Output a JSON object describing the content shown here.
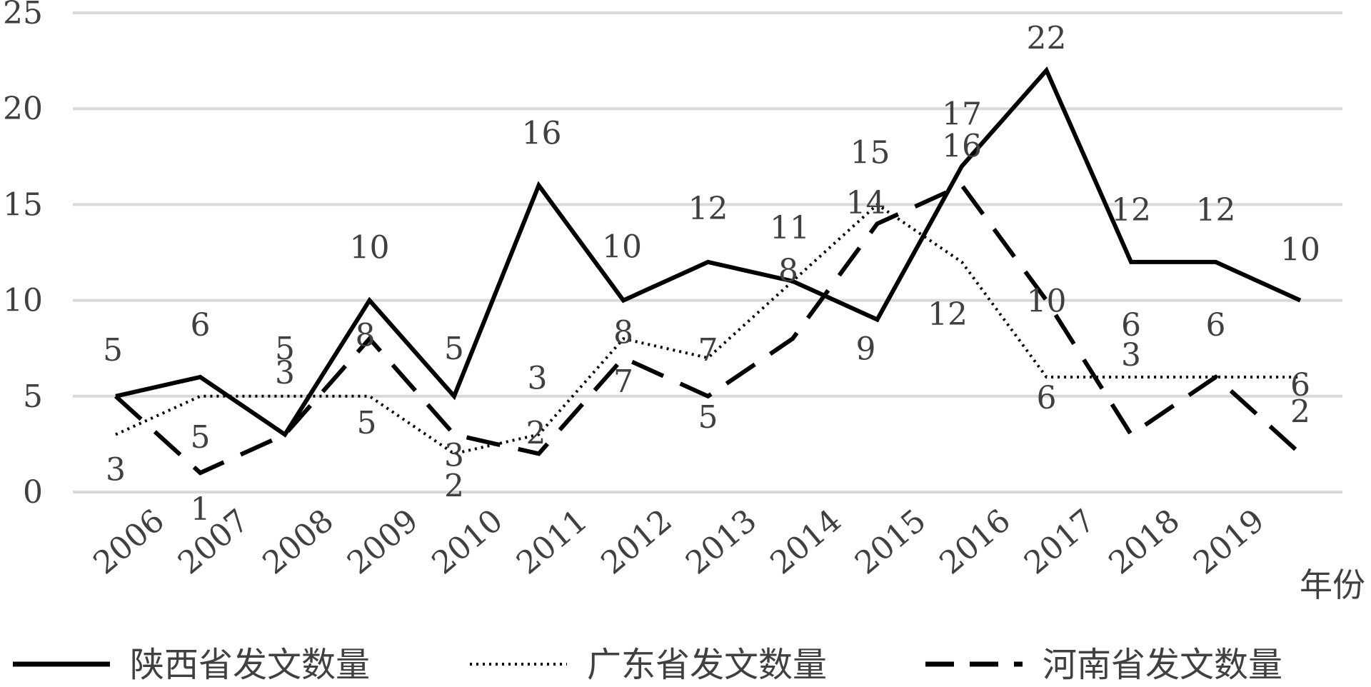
{
  "chart_data": {
    "type": "line",
    "title": "",
    "xlabel": "年份",
    "ylabel": "",
    "ylim": [
      0,
      25
    ],
    "yticks": [
      0,
      5,
      10,
      15,
      20,
      25
    ],
    "grid": true,
    "legend_position": "bottom",
    "categories": [
      "2006",
      "2007",
      "2008",
      "2009",
      "2010",
      "2011",
      "2012",
      "2013",
      "2014",
      "2015",
      "2016",
      "2017",
      "2018",
      "2019",
      ""
    ],
    "series": [
      {
        "name": "陕西省发文数量",
        "style": "solid",
        "color": "#000000",
        "values": [
          5,
          6,
          3,
          10,
          5,
          16,
          10,
          12,
          11,
          9,
          17,
          22,
          12,
          12,
          10
        ]
      },
      {
        "name": "广东省发文数量",
        "style": "dotted",
        "color": "#000000",
        "values": [
          3,
          5,
          5,
          5,
          2,
          3,
          8,
          7,
          11,
          15,
          12,
          6,
          6,
          6,
          6
        ]
      },
      {
        "name": "河南省发文数量",
        "style": "dashed",
        "color": "#000000",
        "values": [
          5,
          1,
          3,
          8,
          3,
          2,
          7,
          5,
          8,
          14,
          16,
          10,
          3,
          6,
          2
        ]
      }
    ],
    "data_labels": [
      {
        "x": 0,
        "text": "5"
      },
      {
        "x": 0,
        "text": "3"
      },
      {
        "x": 1,
        "text": "6"
      },
      {
        "x": 1,
        "text": "5"
      },
      {
        "x": 1,
        "text": "1"
      },
      {
        "x": 2,
        "text": "5"
      },
      {
        "x": 2,
        "text": "3"
      },
      {
        "x": 3,
        "text": "10"
      },
      {
        "x": 3,
        "text": "8"
      },
      {
        "x": 3,
        "text": "5"
      },
      {
        "x": 4,
        "text": "5"
      },
      {
        "x": 4,
        "text": "3"
      },
      {
        "x": 4,
        "text": "2"
      },
      {
        "x": 5,
        "text": "16"
      },
      {
        "x": 5,
        "text": "3"
      },
      {
        "x": 5,
        "text": "2"
      },
      {
        "x": 6,
        "text": "10"
      },
      {
        "x": 6,
        "text": "8"
      },
      {
        "x": 6,
        "text": "7"
      },
      {
        "x": 7,
        "text": "12"
      },
      {
        "x": 7,
        "text": "7"
      },
      {
        "x": 7,
        "text": "5"
      },
      {
        "x": 8,
        "text": "11"
      },
      {
        "x": 8,
        "text": "8"
      },
      {
        "x": 9,
        "text": "15"
      },
      {
        "x": 9,
        "text": "14"
      },
      {
        "x": 9,
        "text": "9"
      },
      {
        "x": 10,
        "text": "17"
      },
      {
        "x": 10,
        "text": "16"
      },
      {
        "x": 10,
        "text": "12"
      },
      {
        "x": 11,
        "text": "22"
      },
      {
        "x": 11,
        "text": "10"
      },
      {
        "x": 11,
        "text": "6"
      },
      {
        "x": 12,
        "text": "12"
      },
      {
        "x": 12,
        "text": "6"
      },
      {
        "x": 12,
        "text": "3"
      },
      {
        "x": 13,
        "text": "12"
      },
      {
        "x": 13,
        "text": "6"
      },
      {
        "x": 14,
        "text": "10"
      },
      {
        "x": 14,
        "text": "6"
      },
      {
        "x": 14,
        "text": "2"
      }
    ]
  }
}
